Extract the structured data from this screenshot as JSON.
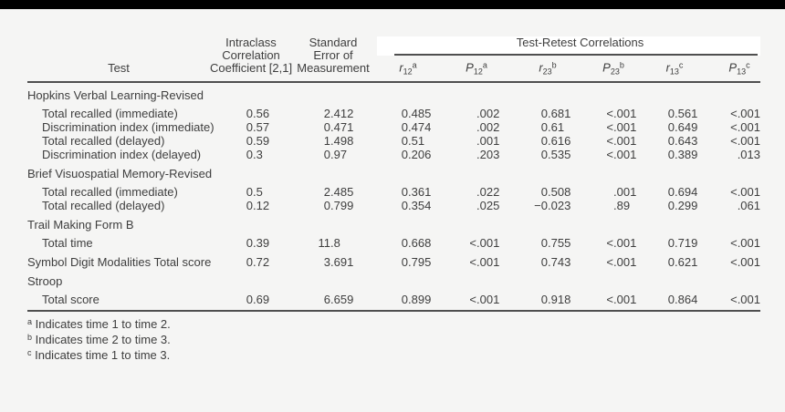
{
  "page": {
    "background_color": "#f5f5f4",
    "top_bar_color": "#000000",
    "text_color": "#3e3e3e",
    "rule_color": "#4f4f4f"
  },
  "table": {
    "spanner_header": "Test-Retest Correlations",
    "col_headers": {
      "test": "Test",
      "icc_lines": [
        "Intraclass",
        "Correlation",
        "Coefficient [2,1]"
      ],
      "sem_lines": [
        "Standard",
        "Error of",
        "Measurement"
      ],
      "stat_headers": [
        {
          "base": "r",
          "sub": "12",
          "sup": "a"
        },
        {
          "base": "P",
          "sub": "12",
          "sup": "a"
        },
        {
          "base": "r",
          "sub": "23",
          "sup": "b"
        },
        {
          "base": "P",
          "sub": "23",
          "sup": "b"
        },
        {
          "base": "r",
          "sub": "13",
          "sup": "c"
        },
        {
          "base": "P",
          "sub": "13",
          "sup": "c"
        }
      ]
    },
    "rows": [
      {
        "label": "Hopkins Verbal Learning-Revised",
        "indent": false
      },
      {
        "label": "Total recalled (immediate)",
        "indent": true,
        "values": [
          "0.56",
          "2.412",
          "0.485",
          ".002",
          "0.681",
          "<.001",
          "0.561",
          "<.001"
        ]
      },
      {
        "label": "Discrimination index (immediate)",
        "indent": true,
        "values": [
          "0.57",
          "0.471",
          "0.474",
          ".002",
          "0.61",
          "<.001",
          "0.649",
          "<.001"
        ]
      },
      {
        "label": "Total recalled (delayed)",
        "indent": true,
        "values": [
          "0.59",
          "1.498",
          "0.51",
          ".001",
          "0.616",
          "<.001",
          "0.643",
          "<.001"
        ]
      },
      {
        "label": "Discrimination index (delayed)",
        "indent": true,
        "values": [
          "0.3",
          "0.97",
          "0.206",
          ".203",
          "0.535",
          "<.001",
          "0.389",
          ".013"
        ]
      },
      {
        "label": "Brief Visuospatial Memory-Revised",
        "indent": false
      },
      {
        "label": "Total recalled (immediate)",
        "indent": true,
        "values": [
          "0.5",
          "2.485",
          "0.361",
          ".022",
          "0.508",
          ".001",
          "0.694",
          "<.001"
        ]
      },
      {
        "label": "Total recalled (delayed)",
        "indent": true,
        "values": [
          "0.12",
          "0.799",
          "0.354",
          ".025",
          "−0.023",
          ".89",
          "0.299",
          ".061"
        ]
      },
      {
        "label": "Trail Making Form B",
        "indent": false
      },
      {
        "label": "Total time",
        "indent": true,
        "values": [
          "0.39",
          "11.8",
          "0.668",
          "<.001",
          "0.755",
          "<.001",
          "0.719",
          "<.001"
        ]
      },
      {
        "label": "Symbol Digit Modalities Total score",
        "indent": false,
        "values": [
          "0.72",
          "3.691",
          "0.795",
          "<.001",
          "0.743",
          "<.001",
          "0.621",
          "<.001"
        ]
      },
      {
        "label": "Stroop",
        "indent": false
      },
      {
        "label": "Total score",
        "indent": true,
        "values": [
          "0.69",
          "6.659",
          "0.899",
          "<.001",
          "0.918",
          "<.001",
          "0.864",
          "<.001"
        ]
      }
    ],
    "footnotes": [
      {
        "marker": "a",
        "text": "Indicates time 1 to time 2."
      },
      {
        "marker": "b",
        "text": "Indicates time 2 to time 3."
      },
      {
        "marker": "c",
        "text": "Indicates time 1 to time 3."
      }
    ]
  }
}
